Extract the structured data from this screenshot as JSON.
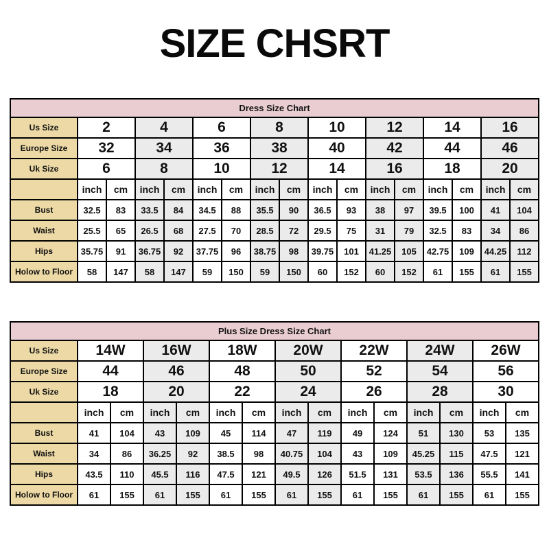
{
  "page_title": "SIZE CHSRT",
  "colors": {
    "header_bg": "#e9cdd1",
    "label_bg": "#ecd9a5",
    "stripe_bg": "#ebebeb",
    "border": "#000000"
  },
  "tables": [
    {
      "title": "Dress Size Chart",
      "units": [
        "inch",
        "cm"
      ],
      "size_rows": [
        {
          "label": "Us Size",
          "values": [
            "2",
            "4",
            "6",
            "8",
            "10",
            "12",
            "14",
            "16"
          ]
        },
        {
          "label": "Europe Size",
          "values": [
            "32",
            "34",
            "36",
            "38",
            "40",
            "42",
            "44",
            "46"
          ]
        },
        {
          "label": "Uk Size",
          "values": [
            "6",
            "8",
            "10",
            "12",
            "14",
            "16",
            "18",
            "20"
          ]
        }
      ],
      "measure_rows": [
        {
          "label": "Bust",
          "values": [
            "32.5",
            "83",
            "33.5",
            "84",
            "34.5",
            "88",
            "35.5",
            "90",
            "36.5",
            "93",
            "38",
            "97",
            "39.5",
            "100",
            "41",
            "104"
          ]
        },
        {
          "label": "Waist",
          "values": [
            "25.5",
            "65",
            "26.5",
            "68",
            "27.5",
            "70",
            "28.5",
            "72",
            "29.5",
            "75",
            "31",
            "79",
            "32.5",
            "83",
            "34",
            "86"
          ]
        },
        {
          "label": "Hips",
          "values": [
            "35.75",
            "91",
            "36.75",
            "92",
            "37.75",
            "96",
            "38.75",
            "98",
            "39.75",
            "101",
            "41.25",
            "105",
            "42.75",
            "109",
            "44.25",
            "112"
          ]
        },
        {
          "label": "Holow to Floor",
          "values": [
            "58",
            "147",
            "58",
            "147",
            "59",
            "150",
            "59",
            "150",
            "60",
            "152",
            "60",
            "152",
            "61",
            "155",
            "61",
            "155"
          ]
        }
      ]
    },
    {
      "title": "Plus Size Dress Size Chart",
      "units": [
        "inch",
        "cm"
      ],
      "size_rows": [
        {
          "label": "Us Size",
          "values": [
            "14W",
            "16W",
            "18W",
            "20W",
            "22W",
            "24W",
            "26W"
          ]
        },
        {
          "label": "Europe Size",
          "values": [
            "44",
            "46",
            "48",
            "50",
            "52",
            "54",
            "56"
          ]
        },
        {
          "label": "Uk Size",
          "values": [
            "18",
            "20",
            "22",
            "24",
            "26",
            "28",
            "30"
          ]
        }
      ],
      "measure_rows": [
        {
          "label": "Bust",
          "values": [
            "41",
            "104",
            "43",
            "109",
            "45",
            "114",
            "47",
            "119",
            "49",
            "124",
            "51",
            "130",
            "53",
            "135"
          ]
        },
        {
          "label": "Waist",
          "values": [
            "34",
            "86",
            "36.25",
            "92",
            "38.5",
            "98",
            "40.75",
            "104",
            "43",
            "109",
            "45.25",
            "115",
            "47.5",
            "121"
          ]
        },
        {
          "label": "Hips",
          "values": [
            "43.5",
            "110",
            "45.5",
            "116",
            "47.5",
            "121",
            "49.5",
            "126",
            "51.5",
            "131",
            "53.5",
            "136",
            "55.5",
            "141"
          ]
        },
        {
          "label": "Holow to Floor",
          "values": [
            "61",
            "155",
            "61",
            "155",
            "61",
            "155",
            "61",
            "155",
            "61",
            "155",
            "61",
            "155",
            "61",
            "155"
          ]
        }
      ]
    }
  ]
}
